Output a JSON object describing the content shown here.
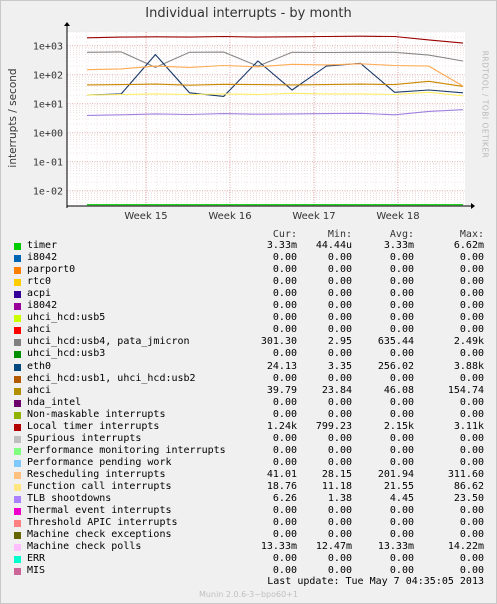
{
  "chart_data": {
    "type": "line",
    "title": "Individual interrupts - by month",
    "ylabel": "interrupts / second",
    "yscale": "log",
    "ylim": [
      0.003,
      3000
    ],
    "yticks": [
      "1e+03",
      "1e+02",
      "1e+01",
      "1e+00",
      "1e-01",
      "1e-02"
    ],
    "ytick_values": [
      1000,
      100,
      10,
      1,
      0.1,
      0.01
    ],
    "xticks": [
      "Week 15",
      "Week 16",
      "Week 17",
      "Week 18"
    ],
    "grid": true,
    "series": [
      {
        "name": "timer",
        "color": "#00cc00",
        "values": [
          0.00333,
          0.00333,
          0.00333,
          0.00333,
          0.00333,
          0.00333,
          0.00333,
          0.00333,
          0.00333,
          0.00333,
          0.00333,
          0.00333
        ]
      },
      {
        "name": "uhci_hcd: usb4, pata_jmicron",
        "color": "#888888",
        "values": [
          600,
          620,
          180,
          600,
          610,
          200,
          600,
          590,
          600,
          600,
          480,
          300
        ]
      },
      {
        "name": "eth0",
        "color": "#1a3a6a",
        "values": [
          20,
          22,
          500,
          24,
          18,
          300,
          30,
          200,
          250,
          25,
          30,
          24
        ]
      },
      {
        "name": "ahci",
        "color": "#cc8800",
        "values": [
          45,
          46,
          48,
          44,
          47,
          46,
          45,
          46,
          48,
          46,
          60,
          40
        ]
      },
      {
        "name": "Local timer interrupts",
        "color": "#990000",
        "values": [
          1900,
          2000,
          2050,
          2000,
          2100,
          2000,
          2050,
          2100,
          2150,
          2100,
          1600,
          1240
        ]
      },
      {
        "name": "Rescheduling interrupts",
        "color": "#ffaa55",
        "values": [
          150,
          160,
          200,
          180,
          210,
          190,
          230,
          220,
          240,
          210,
          200,
          41
        ]
      },
      {
        "name": "Function call interrupts",
        "color": "#ffee66",
        "values": [
          20,
          21,
          22,
          21,
          22,
          21,
          23,
          22,
          22,
          21,
          25,
          19
        ]
      },
      {
        "name": "TLB shootdowns",
        "color": "#a080e0",
        "values": [
          4,
          4.2,
          4.5,
          4.3,
          4.6,
          4.4,
          4.5,
          4.6,
          4.7,
          4.2,
          5.5,
          6.3
        ]
      }
    ],
    "legend_headers": {
      "cur": "Cur:",
      "min": "Min:",
      "avg": "Avg:",
      "max": "Max:"
    },
    "legend": [
      {
        "name": "timer",
        "color": "#00cc00",
        "cur": "3.33m",
        "min": "44.44u",
        "avg": "3.33m",
        "max": "6.62m"
      },
      {
        "name": "i8042",
        "color": "#0066b3",
        "cur": "0.00",
        "min": "0.00",
        "avg": "0.00",
        "max": "0.00"
      },
      {
        "name": "parport0",
        "color": "#ff8000",
        "cur": "0.00",
        "min": "0.00",
        "avg": "0.00",
        "max": "0.00"
      },
      {
        "name": "rtc0",
        "color": "#ffcc00",
        "cur": "0.00",
        "min": "0.00",
        "avg": "0.00",
        "max": "0.00"
      },
      {
        "name": "acpi",
        "color": "#330099",
        "cur": "0.00",
        "min": "0.00",
        "avg": "0.00",
        "max": "0.00"
      },
      {
        "name": "i8042",
        "color": "#990099",
        "cur": "0.00",
        "min": "0.00",
        "avg": "0.00",
        "max": "0.00"
      },
      {
        "name": "uhci_hcd:usb5",
        "color": "#ccff00",
        "cur": "0.00",
        "min": "0.00",
        "avg": "0.00",
        "max": "0.00"
      },
      {
        "name": "ahci",
        "color": "#ff0000",
        "cur": "0.00",
        "min": "0.00",
        "avg": "0.00",
        "max": "0.00"
      },
      {
        "name": "uhci_hcd:usb4, pata_jmicron",
        "color": "#808080",
        "cur": "301.30",
        "min": "2.95",
        "avg": "635.44",
        "max": "2.49k"
      },
      {
        "name": "uhci_hcd:usb3",
        "color": "#008f00",
        "cur": "0.00",
        "min": "0.00",
        "avg": "0.00",
        "max": "0.00"
      },
      {
        "name": "eth0",
        "color": "#00487d",
        "cur": "24.13",
        "min": "3.35",
        "avg": "256.02",
        "max": "3.88k"
      },
      {
        "name": "ehci_hcd:usb1, uhci_hcd:usb2",
        "color": "#b35a00",
        "cur": "0.00",
        "min": "0.00",
        "avg": "0.00",
        "max": "0.00"
      },
      {
        "name": "ahci",
        "color": "#b38f00",
        "cur": "39.79",
        "min": "23.84",
        "avg": "46.08",
        "max": "154.74"
      },
      {
        "name": "hda_intel",
        "color": "#6b006b",
        "cur": "0.00",
        "min": "0.00",
        "avg": "0.00",
        "max": "0.00"
      },
      {
        "name": "Non-maskable interrupts",
        "color": "#8fb300",
        "cur": "0.00",
        "min": "0.00",
        "avg": "0.00",
        "max": "0.00"
      },
      {
        "name": "Local timer interrupts",
        "color": "#b30000",
        "cur": "1.24k",
        "min": "799.23",
        "avg": "2.15k",
        "max": "3.11k"
      },
      {
        "name": "Spurious interrupts",
        "color": "#bebebe",
        "cur": "0.00",
        "min": "0.00",
        "avg": "0.00",
        "max": "0.00"
      },
      {
        "name": "Performance monitoring interrupts",
        "color": "#80ff80",
        "cur": "0.00",
        "min": "0.00",
        "avg": "0.00",
        "max": "0.00"
      },
      {
        "name": "Performance pending work",
        "color": "#80c9ff",
        "cur": "0.00",
        "min": "0.00",
        "avg": "0.00",
        "max": "0.00"
      },
      {
        "name": "Rescheduling interrupts",
        "color": "#ffc080",
        "cur": "41.01",
        "min": "28.15",
        "avg": "201.94",
        "max": "311.60"
      },
      {
        "name": "Function call interrupts",
        "color": "#ffe680",
        "cur": "18.76",
        "min": "11.18",
        "avg": "21.55",
        "max": "86.62"
      },
      {
        "name": "TLB shootdowns",
        "color": "#aa80ff",
        "cur": "6.26",
        "min": "1.38",
        "avg": "4.45",
        "max": "23.50"
      },
      {
        "name": "Thermal event interrupts",
        "color": "#ee00cc",
        "cur": "0.00",
        "min": "0.00",
        "avg": "0.00",
        "max": "0.00"
      },
      {
        "name": "Threshold APIC interrupts",
        "color": "#ff8080",
        "cur": "0.00",
        "min": "0.00",
        "avg": "0.00",
        "max": "0.00"
      },
      {
        "name": "Machine check exceptions",
        "color": "#666600",
        "cur": "0.00",
        "min": "0.00",
        "avg": "0.00",
        "max": "0.00"
      },
      {
        "name": "Machine check polls",
        "color": "#ffbfff",
        "cur": "13.33m",
        "min": "12.47m",
        "avg": "13.33m",
        "max": "14.22m"
      },
      {
        "name": "ERR",
        "color": "#00ffcc",
        "cur": "0.00",
        "min": "0.00",
        "avg": "0.00",
        "max": "0.00"
      },
      {
        "name": "MIS",
        "color": "#cc6699",
        "cur": "0.00",
        "min": "0.00",
        "avg": "0.00",
        "max": "0.00"
      }
    ]
  },
  "side_text": "RRDTOOL / TOBI OETIKER",
  "last_update": "Last update:  Tue May  7 04:35:05 2013",
  "footer": "Munin 2.0.6-3~bpo60+1"
}
